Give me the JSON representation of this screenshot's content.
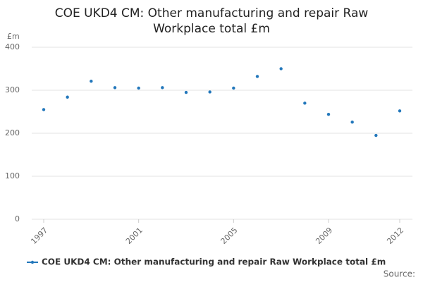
{
  "chart_data": {
    "type": "line",
    "title": "COE UKD4 CM: Other manufacturing and repair Raw Workplace total £m",
    "y_unit": "£m",
    "source": "Source:",
    "x": [
      1997,
      1998,
      1999,
      2000,
      2001,
      2002,
      2003,
      2004,
      2005,
      2006,
      2007,
      2008,
      2009,
      2010,
      2011,
      2012
    ],
    "series": [
      {
        "name": "COE UKD4 CM: Other manufacturing and repair Raw Workplace total £m",
        "color": "#2277bb",
        "values": [
          255,
          284,
          321,
          306,
          305,
          306,
          295,
          296,
          305,
          332,
          350,
          270,
          244,
          226,
          195,
          252
        ]
      }
    ],
    "xlim": [
      1997,
      2012
    ],
    "xticks": [
      1997,
      2001,
      2005,
      2009,
      2012
    ],
    "ylim": [
      0,
      400
    ],
    "yticks": [
      0,
      100,
      200,
      300,
      400
    ],
    "grid": true
  }
}
